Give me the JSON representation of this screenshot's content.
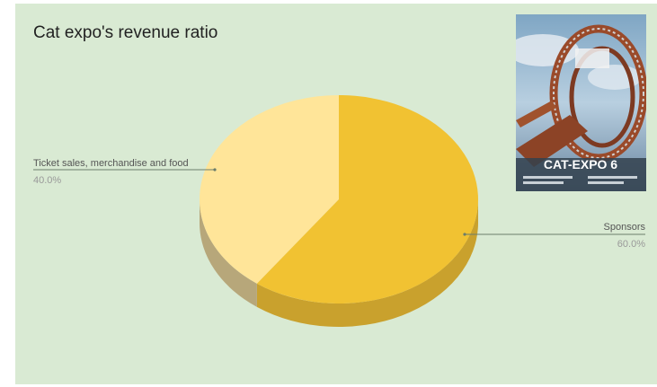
{
  "chart_data": {
    "type": "pie",
    "title": "Cat expo's revenue ratio",
    "style": "3d",
    "slices": [
      {
        "label": "Sponsors",
        "value": 60.0,
        "percent_label": "60.0%",
        "color": "#f1c232",
        "side_color": "#c9a12d"
      },
      {
        "label": "Ticket sales, merchandise and food",
        "value": 40.0,
        "percent_label": "40.0%",
        "color": "#ffe599",
        "side_color": "#b7a77a"
      }
    ],
    "legend": "labels-with-leader-lines"
  },
  "cover_image": {
    "headline": "CAT-EXPO 6"
  }
}
